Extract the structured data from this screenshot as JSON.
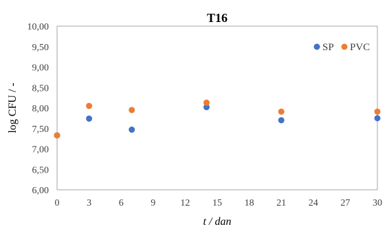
{
  "chart_data": {
    "type": "scatter",
    "title": "T16",
    "xlabel": "t / dan",
    "ylabel": "log CFU / -",
    "xlim": [
      0,
      30
    ],
    "ylim": [
      6.0,
      10.0
    ],
    "x_ticks": [
      0,
      3,
      6,
      9,
      12,
      15,
      18,
      21,
      24,
      27,
      30
    ],
    "y_ticks": [
      "6,00",
      "6,50",
      "7,00",
      "7,50",
      "8,00",
      "8,50",
      "9,00",
      "9,50",
      "10,00"
    ],
    "grid": false,
    "legend_position": "top-right",
    "series": [
      {
        "name": "SP",
        "color": "#4472C4",
        "points": [
          {
            "x": 0,
            "y": 7.33
          },
          {
            "x": 3,
            "y": 7.74
          },
          {
            "x": 7,
            "y": 7.47
          },
          {
            "x": 14,
            "y": 8.02
          },
          {
            "x": 21,
            "y": 7.7
          },
          {
            "x": 30,
            "y": 7.75
          }
        ]
      },
      {
        "name": "PVC",
        "color": "#ED7D31",
        "points": [
          {
            "x": 0,
            "y": 7.33
          },
          {
            "x": 3,
            "y": 8.05
          },
          {
            "x": 7,
            "y": 7.95
          },
          {
            "x": 14,
            "y": 8.13
          },
          {
            "x": 21,
            "y": 7.91
          },
          {
            "x": 30,
            "y": 7.91
          }
        ]
      }
    ]
  }
}
